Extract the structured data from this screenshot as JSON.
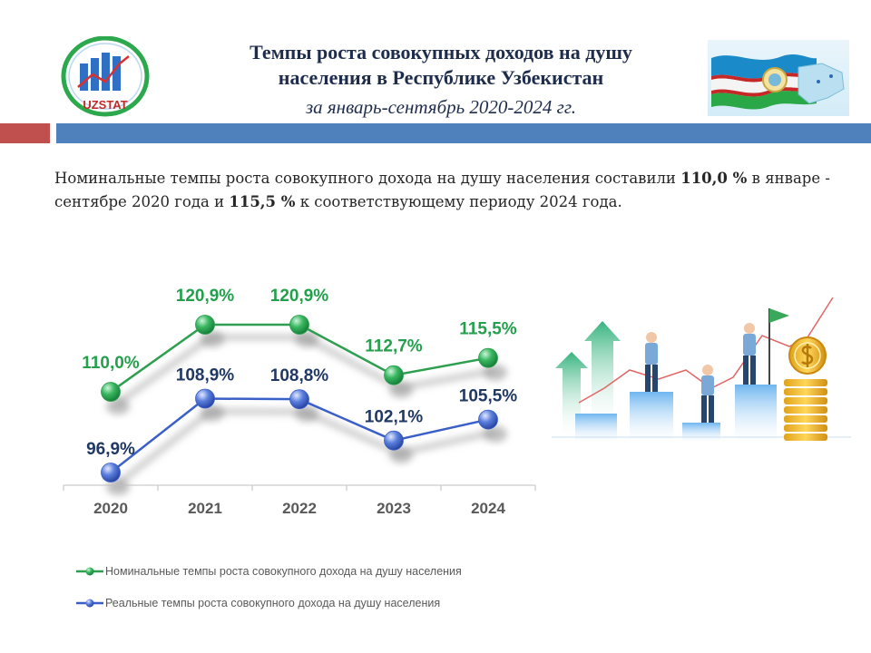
{
  "header": {
    "logo_text": "UZSTAT",
    "title_line1": "Темпы роста совокупных доходов на душу",
    "title_line2": "населения в Республике Узбекистан",
    "subtitle": "за январь-сентябрь 2020-2024 гг."
  },
  "summary": {
    "part1": "Номинальные темпы роста совокупного дохода на душу населения составили ",
    "value1": "110,0 %",
    "part2": " в январе - сентябре 2020 года и ",
    "value2": "115,5 %",
    "part3": " к соответствующему периоду 2024 года."
  },
  "colors": {
    "nominal": "#2e9e4f",
    "nominal_label": "#22a04b",
    "real": "#3a5fc8",
    "real_label": "#203864",
    "header_red": "#c0504d",
    "header_blue": "#4f81bd"
  },
  "chart_data": {
    "type": "line",
    "categories": [
      "2020",
      "2021",
      "2022",
      "2023",
      "2024"
    ],
    "series": [
      {
        "name": "Номинальные темпы роста совокупного дохода на душу населения",
        "values": [
          110.0,
          120.9,
          120.9,
          112.7,
          115.5
        ],
        "labels": [
          "110,0%",
          "120,9%",
          "120,9%",
          "112,7%",
          "115,5%"
        ]
      },
      {
        "name": "Реальные темпы роста совокупного дохода на душу населения",
        "values": [
          96.9,
          108.9,
          108.8,
          102.1,
          105.5
        ],
        "labels": [
          "96,9%",
          "108,9%",
          "108,8%",
          "102,1%",
          "105,5%"
        ]
      }
    ],
    "title": "",
    "xlabel": "",
    "ylabel": "",
    "ylim": [
      96.9,
      120.9
    ],
    "grid": false,
    "legend": "bottom"
  },
  "legend": {
    "nominal": "Номинальные темпы роста совокупного  дохода на душу населения",
    "real": "Реальные темпы роста совокупного дохода на душу населения"
  }
}
